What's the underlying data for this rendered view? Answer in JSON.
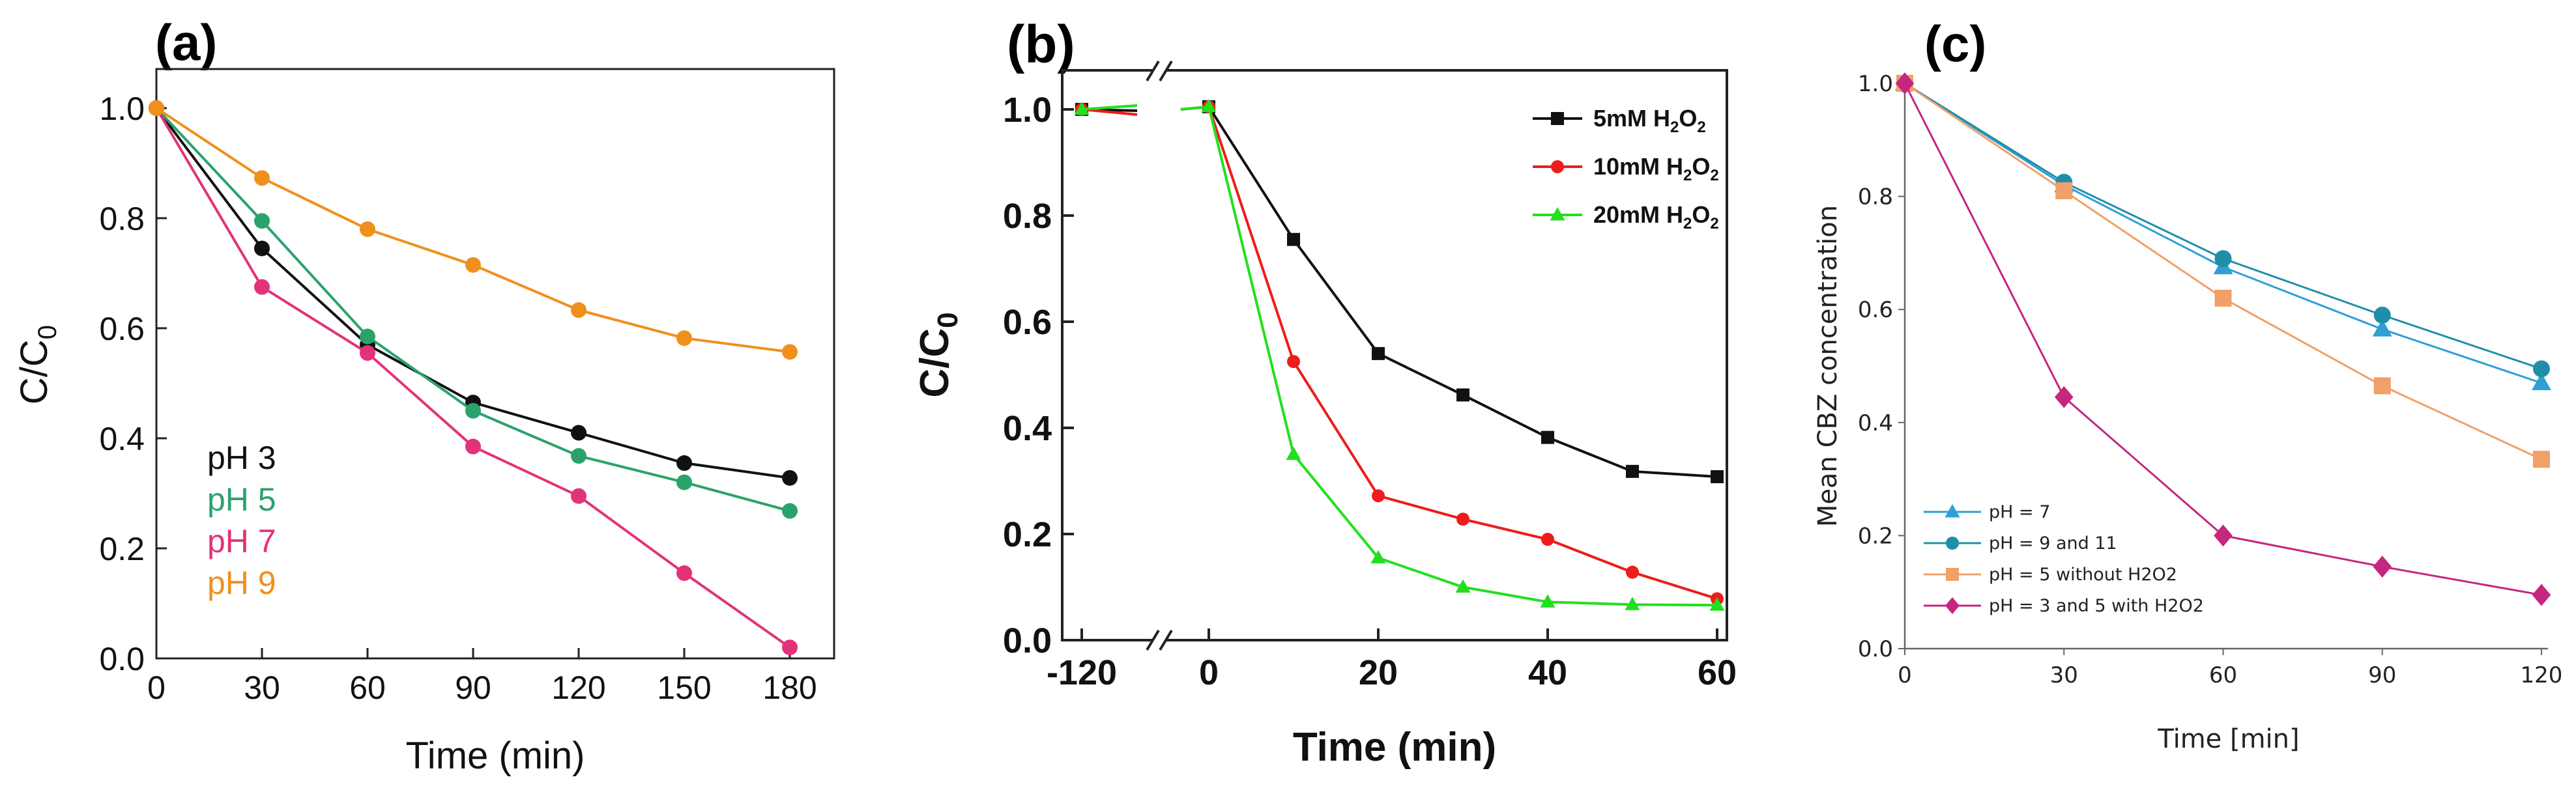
{
  "panel_labels": {
    "a": "(a)",
    "b": "(b)",
    "c": "(c)"
  },
  "chart_data": [
    {
      "id": "a",
      "type": "line",
      "title": "(a)",
      "xlabel": "Time (min)",
      "ylabel_main": "C/C",
      "ylabel_sub": "0",
      "xlim": [
        0,
        195
      ],
      "ylim": [
        0,
        1.05
      ],
      "xticks": [
        0,
        30,
        60,
        90,
        120,
        150,
        180
      ],
      "yticks": [
        0.0,
        0.2,
        0.4,
        0.6,
        0.8,
        1.0
      ],
      "ytick_labels": [
        "0.0",
        "0.2",
        "0.4",
        "0.6",
        "0.8",
        "1.0"
      ],
      "x": [
        0,
        30,
        60,
        90,
        120,
        150,
        180
      ],
      "series": [
        {
          "name": "pH 3",
          "color": "#111111",
          "values": [
            1.0,
            0.745,
            0.57,
            0.465,
            0.41,
            0.355,
            0.328
          ]
        },
        {
          "name": "pH 5",
          "color": "#2aa36b",
          "values": [
            1.0,
            0.795,
            0.585,
            0.45,
            0.368,
            0.32,
            0.268
          ]
        },
        {
          "name": "pH 7",
          "color": "#e3327a",
          "values": [
            1.0,
            0.675,
            0.555,
            0.385,
            0.295,
            0.155,
            0.02
          ]
        },
        {
          "name": "pH 9",
          "color": "#f0901c",
          "values": [
            1.0,
            0.873,
            0.78,
            0.715,
            0.633,
            0.582,
            0.557
          ]
        }
      ]
    },
    {
      "id": "b",
      "type": "line",
      "title": "(b)",
      "xlabel": "Time (min)",
      "ylabel_main": "C/C",
      "ylabel_sub": "0",
      "ylim": [
        0,
        1.1
      ],
      "xticks": [
        -120,
        0,
        20,
        40,
        60
      ],
      "yticks": [
        0.0,
        0.2,
        0.4,
        0.6,
        0.8,
        1.0
      ],
      "ytick_labels": [
        "0.0",
        "0.2",
        "0.4",
        "0.6",
        "0.8",
        "1.0"
      ],
      "axis_break_after": -120,
      "series": [
        {
          "name": "5mM H2O2",
          "label_main": "5mM H",
          "label_sub1": "2",
          "label_mid": "O",
          "label_sub2": "2",
          "color": "#111111",
          "marker": "square",
          "x": [
            -120,
            0,
            10,
            20,
            30,
            40,
            50,
            60
          ],
          "values": [
            1.0,
            1.005,
            0.755,
            0.54,
            0.462,
            0.382,
            0.318,
            0.308
          ]
        },
        {
          "name": "10mM H2O2",
          "label_main": "10mM H",
          "label_sub1": "2",
          "label_mid": "O",
          "label_sub2": "2",
          "color": "#ee1c1c",
          "marker": "circle",
          "x": [
            -120,
            0,
            10,
            20,
            30,
            40,
            50,
            60
          ],
          "values": [
            1.0,
            1.005,
            0.525,
            0.272,
            0.228,
            0.19,
            0.128,
            0.078
          ]
        },
        {
          "name": "20mM H2O2",
          "label_main": "20mM H",
          "label_sub1": "2",
          "label_mid": "O",
          "label_sub2": "2",
          "color": "#22e01e",
          "marker": "triangle",
          "x": [
            -120,
            0,
            10,
            20,
            30,
            40,
            50,
            60
          ],
          "values": [
            1.0,
            1.005,
            0.35,
            0.155,
            0.1,
            0.072,
            0.067,
            0.066
          ]
        }
      ]
    },
    {
      "id": "c",
      "type": "line",
      "title": "(c)",
      "xlabel": "Time [min]",
      "ylabel": "Mean CBZ concentration",
      "xlim": [
        0,
        120
      ],
      "ylim": [
        0,
        1.0
      ],
      "xticks": [
        0,
        30,
        60,
        90,
        120
      ],
      "yticks": [
        0.0,
        0.2,
        0.4,
        0.6,
        0.8,
        1.0
      ],
      "ytick_labels": [
        "0.0",
        "0.2",
        "0.4",
        "0.6",
        "0.8",
        "1.0"
      ],
      "x": [
        0,
        30,
        60,
        90,
        120
      ],
      "series": [
        {
          "name": "pH = 7",
          "color": "#2f9fd6",
          "marker": "triangle",
          "values": [
            1.0,
            0.82,
            0.675,
            0.565,
            0.47
          ]
        },
        {
          "name": "pH = 9 and 11",
          "color": "#1f8fa8",
          "marker": "circle",
          "values": [
            1.0,
            0.825,
            0.69,
            0.59,
            0.495
          ]
        },
        {
          "name": "pH = 5 without H2O2",
          "color": "#f0a068",
          "marker": "square",
          "values": [
            1.0,
            0.81,
            0.62,
            0.465,
            0.335
          ]
        },
        {
          "name": "pH = 3 and 5 with H2O2",
          "color": "#c5267f",
          "marker": "diamond",
          "values": [
            1.0,
            0.445,
            0.2,
            0.145,
            0.095
          ]
        }
      ]
    }
  ]
}
